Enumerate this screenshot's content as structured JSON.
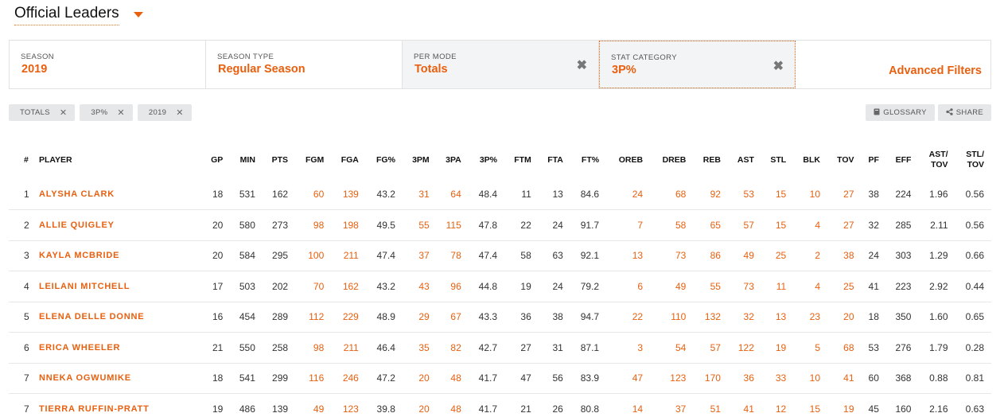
{
  "header": {
    "title": "Official Leaders"
  },
  "filters": {
    "season": {
      "label": "SEASON",
      "value": "2019"
    },
    "season_type": {
      "label": "SEASON TYPE",
      "value": "Regular Season"
    },
    "per_mode": {
      "label": "PER MODE",
      "value": "Totals",
      "clear_icon": "✖"
    },
    "stat_category": {
      "label": "STAT CATEGORY",
      "value": "3P%",
      "clear_icon": "✖"
    },
    "advanced": "Advanced Filters"
  },
  "chips": [
    "TOTALS",
    "3P%",
    "2019"
  ],
  "chip_close": "✕",
  "toolbar": {
    "glossary": "GLOSSARY",
    "share": "SHARE"
  },
  "colors": {
    "accent": "#e8600f",
    "chip_bg": "#e6e7e9"
  },
  "table": {
    "columns": [
      "#",
      "PLAYER",
      "GP",
      "MIN",
      "PTS",
      "FGM",
      "FGA",
      "FG%",
      "3PM",
      "3PA",
      "3P%",
      "FTM",
      "FTA",
      "FT%",
      "OREB",
      "DREB",
      "REB",
      "AST",
      "STL",
      "BLK",
      "TOV",
      "PF",
      "EFF",
      "AST/\nTOV",
      "STL/\nTOV"
    ],
    "rows": [
      [
        "1",
        "ALYSHA CLARK",
        "18",
        "531",
        "162",
        "60",
        "139",
        "43.2",
        "31",
        "64",
        "48.4",
        "11",
        "13",
        "84.6",
        "24",
        "68",
        "92",
        "53",
        "15",
        "10",
        "27",
        "38",
        "224",
        "1.96",
        "0.56"
      ],
      [
        "2",
        "ALLIE QUIGLEY",
        "20",
        "580",
        "273",
        "98",
        "198",
        "49.5",
        "55",
        "115",
        "47.8",
        "22",
        "24",
        "91.7",
        "7",
        "58",
        "65",
        "57",
        "15",
        "4",
        "27",
        "32",
        "285",
        "2.11",
        "0.56"
      ],
      [
        "3",
        "KAYLA MCBRIDE",
        "20",
        "584",
        "295",
        "100",
        "211",
        "47.4",
        "37",
        "78",
        "47.4",
        "58",
        "63",
        "92.1",
        "13",
        "73",
        "86",
        "49",
        "25",
        "2",
        "38",
        "24",
        "303",
        "1.29",
        "0.66"
      ],
      [
        "4",
        "LEILANI MITCHELL",
        "17",
        "503",
        "202",
        "70",
        "162",
        "43.2",
        "43",
        "96",
        "44.8",
        "19",
        "24",
        "79.2",
        "6",
        "49",
        "55",
        "73",
        "11",
        "4",
        "25",
        "41",
        "223",
        "2.92",
        "0.44"
      ],
      [
        "5",
        "ELENA DELLE DONNE",
        "16",
        "454",
        "289",
        "112",
        "229",
        "48.9",
        "29",
        "67",
        "43.3",
        "36",
        "38",
        "94.7",
        "22",
        "110",
        "132",
        "32",
        "13",
        "23",
        "20",
        "18",
        "350",
        "1.60",
        "0.65"
      ],
      [
        "6",
        "ERICA WHEELER",
        "21",
        "550",
        "258",
        "98",
        "211",
        "46.4",
        "35",
        "82",
        "42.7",
        "27",
        "31",
        "87.1",
        "3",
        "54",
        "57",
        "122",
        "19",
        "5",
        "68",
        "53",
        "276",
        "1.79",
        "0.28"
      ],
      [
        "7",
        "NNEKA OGWUMIKE",
        "18",
        "541",
        "299",
        "116",
        "246",
        "47.2",
        "20",
        "48",
        "41.7",
        "47",
        "56",
        "83.9",
        "47",
        "123",
        "170",
        "36",
        "33",
        "10",
        "41",
        "60",
        "368",
        "0.88",
        "0.81"
      ],
      [
        "7",
        "TIERRA RUFFIN-PRATT",
        "19",
        "486",
        "139",
        "49",
        "123",
        "39.8",
        "20",
        "48",
        "41.7",
        "21",
        "26",
        "80.8",
        "14",
        "37",
        "51",
        "41",
        "12",
        "15",
        "19",
        "45",
        "160",
        "2.16",
        "0.63"
      ]
    ]
  }
}
